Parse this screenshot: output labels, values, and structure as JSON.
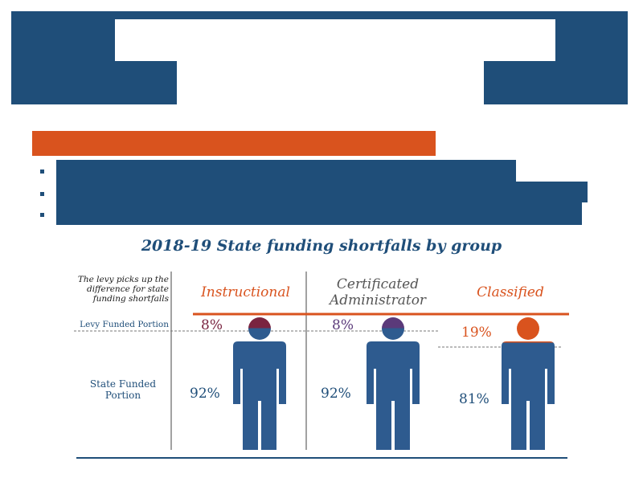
{
  "colors": {
    "navy": "#1f4e79",
    "orange": "#d9531e",
    "purple": "#5b3a7a",
    "maroon": "#7a2440",
    "person_blue": "#2e5b8f"
  },
  "chart_data": {
    "type": "bar",
    "title": "2018-19 State funding shortfalls by group",
    "note": "The levy picks up the difference for state funding shortfalls",
    "row_labels": {
      "levy": "Levy Funded Portion",
      "state": "State Funded Portion"
    },
    "categories": [
      "Instructional",
      "Certificated Administrator",
      "Classified"
    ],
    "series": [
      {
        "name": "Levy Funded Portion",
        "values": [
          8,
          8,
          19
        ],
        "labels": [
          "8%",
          "8%",
          "19%"
        ]
      },
      {
        "name": "State Funded Portion",
        "values": [
          92,
          92,
          81
        ],
        "labels": [
          "92%",
          "92%",
          "81%"
        ]
      }
    ],
    "unit": "%",
    "ylim": [
      0,
      100
    ]
  }
}
